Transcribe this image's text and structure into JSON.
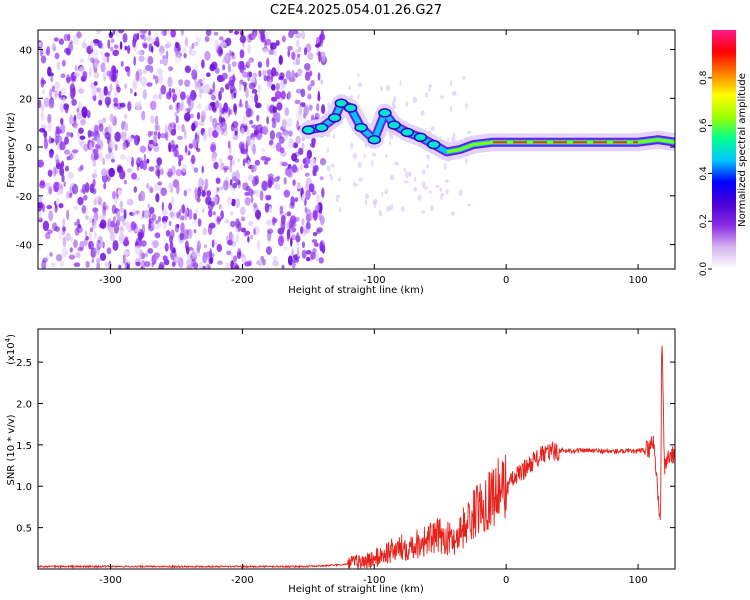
{
  "title": "C2E4.2025.054.01.26.G27",
  "spectrogram": {
    "type": "heatmap",
    "xlabel": "Height of straight line (km)",
    "ylabel": "Frequency (Hz)",
    "xlim": [
      -355,
      128
    ],
    "ylim": [
      -50,
      48
    ],
    "xticks": [
      -300,
      -200,
      -100,
      0,
      100
    ],
    "yticks": [
      -40,
      -20,
      0,
      20,
      40
    ],
    "xtick_labels": [
      "-300",
      "-200",
      "-100",
      "0",
      "100"
    ],
    "ytick_labels": [
      "-40",
      "-20",
      "0",
      "20",
      "40"
    ],
    "colorbar": {
      "label": "Normalized spectral amplitude",
      "range": [
        0,
        1
      ],
      "ticks": [
        0.0,
        0.2,
        0.4,
        0.6,
        0.8
      ],
      "tick_labels": [
        "0.0",
        "0.2",
        "0.4",
        "0.6",
        "0.8"
      ],
      "colors": [
        "#ffffff",
        "#d6b4f0",
        "#8a2be2",
        "#4b00d6",
        "#0000ff",
        "#00c8ff",
        "#00ff90",
        "#9cff00",
        "#ffff00",
        "#ff8000",
        "#ff0000",
        "#ff1a8c"
      ]
    },
    "noise_region": {
      "x": [
        -355,
        -138
      ],
      "y": [
        -50,
        48
      ]
    },
    "ridge": [
      {
        "x": -150,
        "f": 7
      },
      {
        "x": -140,
        "f": 8
      },
      {
        "x": -130,
        "f": 12
      },
      {
        "x": -125,
        "f": 18
      },
      {
        "x": -118,
        "f": 16
      },
      {
        "x": -110,
        "f": 8
      },
      {
        "x": -100,
        "f": 3
      },
      {
        "x": -92,
        "f": 14
      },
      {
        "x": -85,
        "f": 9
      },
      {
        "x": -75,
        "f": 6
      },
      {
        "x": -65,
        "f": 4
      },
      {
        "x": -55,
        "f": 1
      },
      {
        "x": -45,
        "f": -2
      },
      {
        "x": -35,
        "f": -1
      },
      {
        "x": -25,
        "f": 1
      },
      {
        "x": -10,
        "f": 2
      },
      {
        "x": 0,
        "f": 2
      },
      {
        "x": 20,
        "f": 2
      },
      {
        "x": 40,
        "f": 2
      },
      {
        "x": 60,
        "f": 2
      },
      {
        "x": 80,
        "f": 2
      },
      {
        "x": 100,
        "f": 2
      },
      {
        "x": 115,
        "f": 3
      },
      {
        "x": 128,
        "f": 2
      }
    ]
  },
  "snr": {
    "type": "line",
    "xlabel": "Height of straight line (km)",
    "ylabel": "SNR (10 * v/v)",
    "scale_label": "(x10",
    "scale_exp": "4",
    "scale_close": ")",
    "xlim": [
      -355,
      128
    ],
    "ylim": [
      0,
      2.9
    ],
    "xticks": [
      -300,
      -200,
      -100,
      0,
      100
    ],
    "xtick_labels": [
      "-300",
      "-200",
      "-100",
      "0",
      "100"
    ],
    "yticks": [
      0.5,
      1.0,
      1.5,
      2.0,
      2.5
    ],
    "ytick_labels": [
      "0.5",
      "1.0",
      "1.5",
      "2.0",
      "2.5"
    ],
    "color": "#e8201a",
    "points": [
      {
        "x": -355,
        "y": 0.03
      },
      {
        "x": -300,
        "y": 0.03
      },
      {
        "x": -250,
        "y": 0.03
      },
      {
        "x": -200,
        "y": 0.03
      },
      {
        "x": -150,
        "y": 0.03
      },
      {
        "x": -125,
        "y": 0.05
      },
      {
        "x": -110,
        "y": 0.08
      },
      {
        "x": -100,
        "y": 0.12
      },
      {
        "x": -90,
        "y": 0.2
      },
      {
        "x": -80,
        "y": 0.25
      },
      {
        "x": -70,
        "y": 0.3
      },
      {
        "x": -60,
        "y": 0.35
      },
      {
        "x": -50,
        "y": 0.4
      },
      {
        "x": -40,
        "y": 0.35
      },
      {
        "x": -30,
        "y": 0.55
      },
      {
        "x": -20,
        "y": 0.75
      },
      {
        "x": -10,
        "y": 0.9
      },
      {
        "x": 0,
        "y": 1.0
      },
      {
        "x": 10,
        "y": 1.15
      },
      {
        "x": 20,
        "y": 1.3
      },
      {
        "x": 30,
        "y": 1.4
      },
      {
        "x": 40,
        "y": 1.43
      },
      {
        "x": 60,
        "y": 1.43
      },
      {
        "x": 80,
        "y": 1.42
      },
      {
        "x": 100,
        "y": 1.42
      },
      {
        "x": 108,
        "y": 1.45
      },
      {
        "x": 112,
        "y": 1.55
      },
      {
        "x": 115,
        "y": 0.9
      },
      {
        "x": 117,
        "y": 0.55
      },
      {
        "x": 118,
        "y": 2.9
      },
      {
        "x": 120,
        "y": 1.2
      },
      {
        "x": 122,
        "y": 1.35
      },
      {
        "x": 128,
        "y": 1.38
      }
    ]
  }
}
